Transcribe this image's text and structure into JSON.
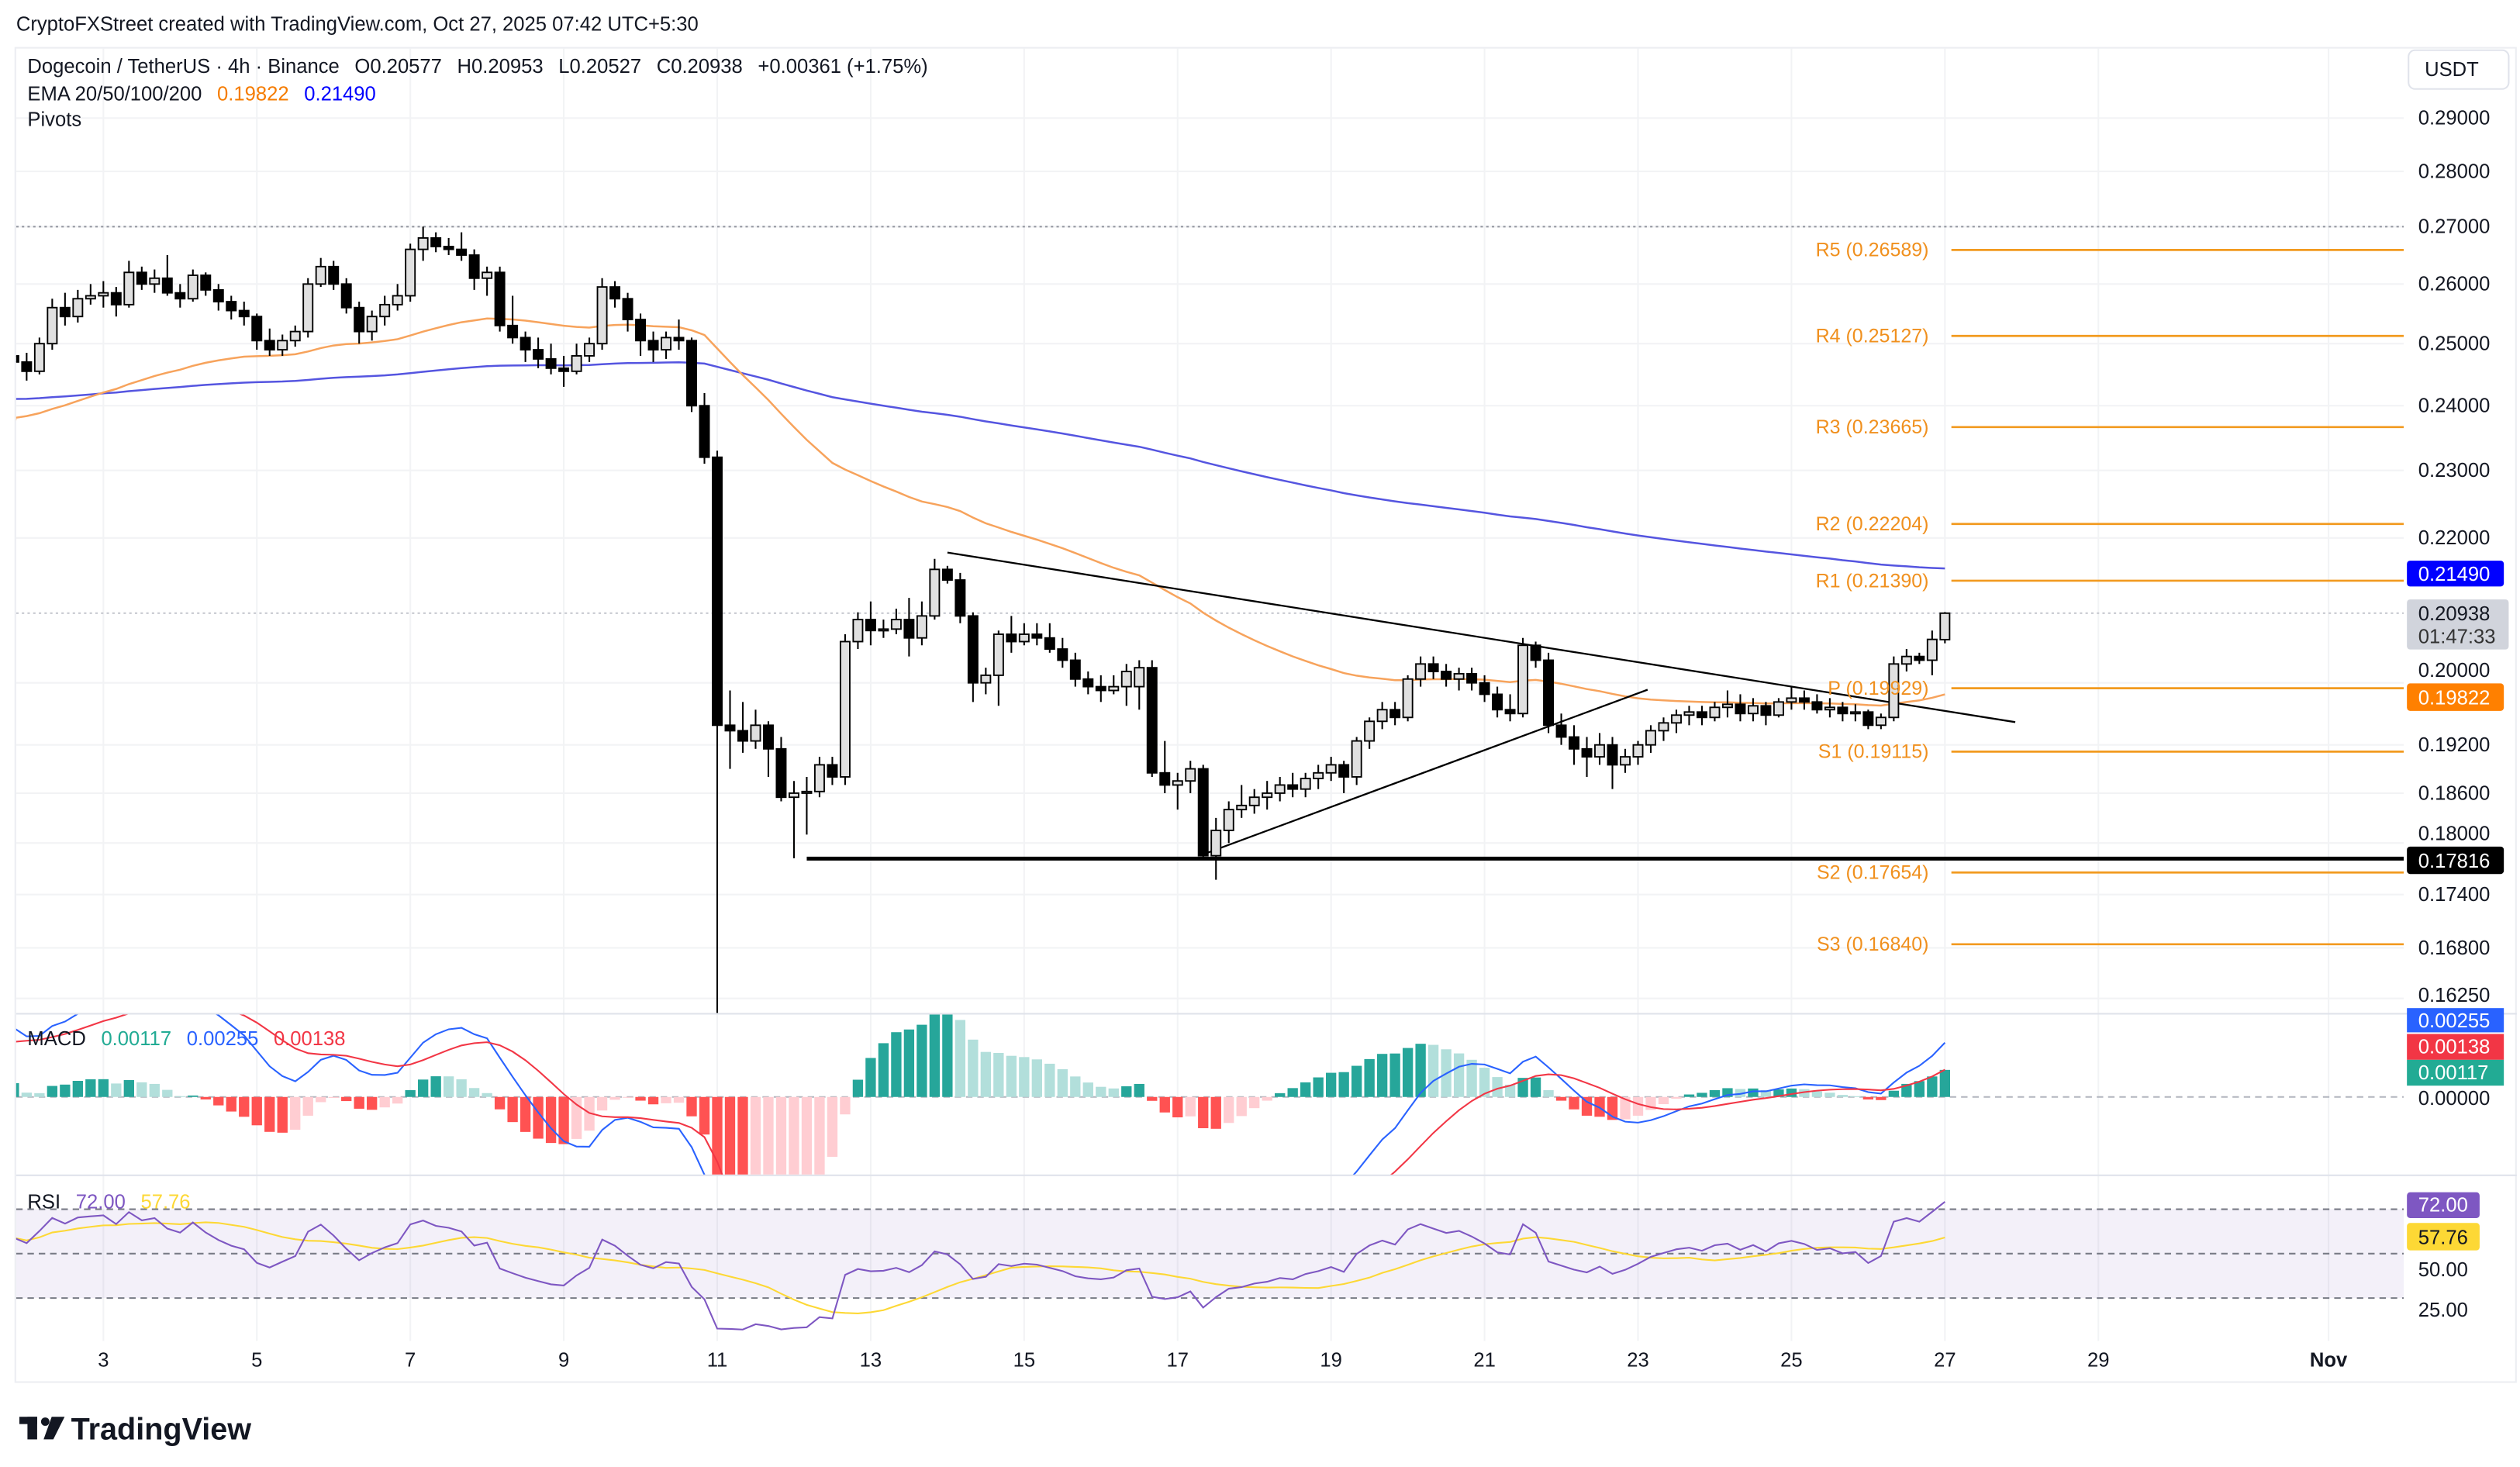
{
  "attribution": "CryptoFXStreet created with TradingView.com, Oct 27, 2025 07:42 UTC+5:30",
  "legend": {
    "symbol": "Dogecoin / TetherUS · 4h · Binance",
    "open": "O0.20577",
    "high": "H0.20953",
    "low": "L0.20527",
    "close": "C0.20938",
    "change": "+0.00361 (+1.75%)",
    "ema_label": "EMA 20/50/100/200",
    "ema_value_1": "0.19822",
    "ema_value_2": "0.21490",
    "pivots_label": "Pivots"
  },
  "currency": "USDT",
  "price_tags": {
    "ema_200": "0.21490",
    "last_price": "0.20938",
    "countdown": "01:47:33",
    "ema_50": "0.19822",
    "support": "0.17816"
  },
  "macd": {
    "label": "MACD",
    "histogram": "0.00117",
    "macd": "0.00255",
    "signal": "0.00138",
    "axis_zero": "0.00000"
  },
  "rsi": {
    "label": "RSI",
    "value": "72.00",
    "ma": "57.76",
    "axis": [
      "50.00",
      "25.00"
    ],
    "upper": 70,
    "middle": 50,
    "lower": 30
  },
  "logo": "TradingView",
  "colors": {
    "up_body": "#e0e0e0",
    "down_body": "#000000",
    "ema_50": "#f7a35c",
    "ema_200": "#5555e0",
    "pivot": "#f29a1f",
    "macd_line": "#2962ff",
    "signal_line": "#f23645",
    "hist_up_strong": "#26a69a",
    "hist_up_weak": "#b2dfdb",
    "hist_down_strong": "#ff5252",
    "hist_down_weak": "#ffcdd2",
    "rsi_line": "#7e57c2",
    "rsi_ma": "#fdd835",
    "tag_blue": "#0000ff",
    "tag_orange": "#ff8000"
  },
  "chart_data": {
    "type": "candlestick",
    "title": "Dogecoin / TetherUS · 4h · Binance",
    "interval": "4h",
    "first_candle": "2025-10-01 20:00",
    "scale": "log",
    "ylim": [
      0.1625,
      0.295
    ],
    "price_ticks": [
      "0.29000",
      "0.28000",
      "0.27000",
      "0.26000",
      "0.25000",
      "0.24000",
      "0.23000",
      "0.22000",
      "0.20000",
      "0.19200",
      "0.18600",
      "0.18000",
      "0.17400",
      "0.16800",
      "0.16250"
    ],
    "x_ticks": [
      {
        "label": "3",
        "date": "2025-10-03"
      },
      {
        "label": "5",
        "date": "2025-10-05"
      },
      {
        "label": "7",
        "date": "2025-10-07"
      },
      {
        "label": "9",
        "date": "2025-10-09"
      },
      {
        "label": "11",
        "date": "2025-10-11"
      },
      {
        "label": "13",
        "date": "2025-10-13"
      },
      {
        "label": "15",
        "date": "2025-10-15"
      },
      {
        "label": "17",
        "date": "2025-10-17"
      },
      {
        "label": "19",
        "date": "2025-10-19"
      },
      {
        "label": "21",
        "date": "2025-10-21"
      },
      {
        "label": "23",
        "date": "2025-10-23"
      },
      {
        "label": "25",
        "date": "2025-10-25"
      },
      {
        "label": "27",
        "date": "2025-10-27"
      },
      {
        "label": "29",
        "date": "2025-10-29"
      },
      {
        "label": "Nov",
        "date": "2025-11-01"
      }
    ],
    "ohlc": [
      [
        0.248,
        0.2495,
        0.2455,
        0.247
      ],
      [
        0.247,
        0.2485,
        0.244,
        0.2455
      ],
      [
        0.2455,
        0.251,
        0.245,
        0.25
      ],
      [
        0.25,
        0.2575,
        0.249,
        0.256
      ],
      [
        0.256,
        0.2585,
        0.253,
        0.2545
      ],
      [
        0.2545,
        0.259,
        0.2535,
        0.2575
      ],
      [
        0.2575,
        0.26,
        0.2565,
        0.258
      ],
      [
        0.258,
        0.2605,
        0.256,
        0.2585
      ],
      [
        0.2585,
        0.2595,
        0.2545,
        0.2565
      ],
      [
        0.2565,
        0.264,
        0.256,
        0.262
      ],
      [
        0.262,
        0.263,
        0.259,
        0.26
      ],
      [
        0.26,
        0.2625,
        0.2585,
        0.261
      ],
      [
        0.261,
        0.265,
        0.258,
        0.2585
      ],
      [
        0.2585,
        0.26,
        0.256,
        0.2575
      ],
      [
        0.2575,
        0.2625,
        0.257,
        0.2615
      ],
      [
        0.2615,
        0.262,
        0.258,
        0.259
      ],
      [
        0.259,
        0.26,
        0.2555,
        0.257
      ],
      [
        0.257,
        0.258,
        0.254,
        0.2555
      ],
      [
        0.2555,
        0.257,
        0.253,
        0.2545
      ],
      [
        0.2545,
        0.255,
        0.249,
        0.2505
      ],
      [
        0.2505,
        0.2525,
        0.248,
        0.249
      ],
      [
        0.249,
        0.2515,
        0.248,
        0.2505
      ],
      [
        0.2505,
        0.253,
        0.2495,
        0.252
      ],
      [
        0.252,
        0.261,
        0.251,
        0.26
      ],
      [
        0.26,
        0.2645,
        0.2595,
        0.263
      ],
      [
        0.263,
        0.264,
        0.259,
        0.26
      ],
      [
        0.26,
        0.261,
        0.255,
        0.256
      ],
      [
        0.256,
        0.257,
        0.25,
        0.252
      ],
      [
        0.252,
        0.2555,
        0.2505,
        0.2545
      ],
      [
        0.2545,
        0.258,
        0.253,
        0.2565
      ],
      [
        0.2565,
        0.26,
        0.2555,
        0.258
      ],
      [
        0.258,
        0.267,
        0.257,
        0.266
      ],
      [
        0.266,
        0.27,
        0.264,
        0.268
      ],
      [
        0.268,
        0.269,
        0.2655,
        0.2665
      ],
      [
        0.2665,
        0.268,
        0.265,
        0.266
      ],
      [
        0.266,
        0.269,
        0.264,
        0.265
      ],
      [
        0.265,
        0.266,
        0.259,
        0.261
      ],
      [
        0.261,
        0.263,
        0.258,
        0.262
      ],
      [
        0.262,
        0.263,
        0.252,
        0.253
      ],
      [
        0.253,
        0.258,
        0.25,
        0.251
      ],
      [
        0.251,
        0.252,
        0.247,
        0.249
      ],
      [
        0.249,
        0.251,
        0.246,
        0.2475
      ],
      [
        0.2475,
        0.25,
        0.245,
        0.246
      ],
      [
        0.246,
        0.248,
        0.243,
        0.2455
      ],
      [
        0.2455,
        0.25,
        0.245,
        0.248
      ],
      [
        0.248,
        0.251,
        0.247,
        0.25
      ],
      [
        0.25,
        0.261,
        0.249,
        0.2595
      ],
      [
        0.2595,
        0.2605,
        0.256,
        0.2575
      ],
      [
        0.2575,
        0.2585,
        0.252,
        0.254
      ],
      [
        0.254,
        0.255,
        0.248,
        0.2505
      ],
      [
        0.2505,
        0.252,
        0.247,
        0.249
      ],
      [
        0.249,
        0.252,
        0.2475,
        0.251
      ],
      [
        0.251,
        0.254,
        0.249,
        0.2505
      ],
      [
        0.2505,
        0.251,
        0.239,
        0.24
      ],
      [
        0.24,
        0.242,
        0.231,
        0.232
      ],
      [
        0.232,
        0.233,
        0.16,
        0.1945
      ],
      [
        0.1945,
        0.199,
        0.189,
        0.1938
      ],
      [
        0.1938,
        0.1975,
        0.191,
        0.1925
      ],
      [
        0.1925,
        0.1965,
        0.1915,
        0.1945
      ],
      [
        0.1945,
        0.195,
        0.188,
        0.1915
      ],
      [
        0.1915,
        0.193,
        0.185,
        0.1855
      ],
      [
        0.1855,
        0.1875,
        0.1782,
        0.186
      ],
      [
        0.186,
        0.188,
        0.181,
        0.1862
      ],
      [
        0.1862,
        0.1905,
        0.1855,
        0.1895
      ],
      [
        0.1895,
        0.1905,
        0.187,
        0.188
      ],
      [
        0.188,
        0.2065,
        0.187,
        0.2055
      ],
      [
        0.2055,
        0.2095,
        0.2045,
        0.2085
      ],
      [
        0.2085,
        0.211,
        0.205,
        0.207
      ],
      [
        0.207,
        0.2085,
        0.206,
        0.2072
      ],
      [
        0.2072,
        0.21,
        0.2065,
        0.2085
      ],
      [
        0.2085,
        0.2115,
        0.2035,
        0.206
      ],
      [
        0.206,
        0.211,
        0.205,
        0.209
      ],
      [
        0.209,
        0.217,
        0.2085,
        0.2155
      ],
      [
        0.2155,
        0.216,
        0.2135,
        0.214
      ],
      [
        0.214,
        0.215,
        0.208,
        0.209
      ],
      [
        0.209,
        0.2095,
        0.1975,
        0.2
      ],
      [
        0.2,
        0.202,
        0.1985,
        0.201
      ],
      [
        0.201,
        0.207,
        0.197,
        0.2065
      ],
      [
        0.2065,
        0.209,
        0.204,
        0.2055
      ],
      [
        0.2055,
        0.208,
        0.205,
        0.2065
      ],
      [
        0.2065,
        0.208,
        0.205,
        0.206
      ],
      [
        0.206,
        0.208,
        0.204,
        0.2045
      ],
      [
        0.2045,
        0.206,
        0.202,
        0.203
      ],
      [
        0.203,
        0.204,
        0.1995,
        0.2005
      ],
      [
        0.2005,
        0.2015,
        0.1985,
        0.1995
      ],
      [
        0.1995,
        0.201,
        0.1975,
        0.199
      ],
      [
        0.199,
        0.201,
        0.1985,
        0.1995
      ],
      [
        0.1995,
        0.2025,
        0.197,
        0.2015
      ],
      [
        0.1995,
        0.203,
        0.1965,
        0.202
      ],
      [
        0.202,
        0.203,
        0.188,
        0.1885
      ],
      [
        0.1885,
        0.1925,
        0.186,
        0.187
      ],
      [
        0.187,
        0.1885,
        0.184,
        0.1875
      ],
      [
        0.1875,
        0.19,
        0.186,
        0.189
      ],
      [
        0.189,
        0.1895,
        0.178,
        0.1785
      ],
      [
        0.1785,
        0.183,
        0.1757,
        0.1815
      ],
      [
        0.1815,
        0.185,
        0.18,
        0.184
      ],
      [
        0.184,
        0.187,
        0.183,
        0.1845
      ],
      [
        0.1845,
        0.1865,
        0.1835,
        0.1855
      ],
      [
        0.1855,
        0.1875,
        0.184,
        0.186
      ],
      [
        0.186,
        0.188,
        0.185,
        0.187
      ],
      [
        0.187,
        0.1885,
        0.1855,
        0.1865
      ],
      [
        0.1865,
        0.1885,
        0.1855,
        0.1878
      ],
      [
        0.1878,
        0.1895,
        0.1865,
        0.1885
      ],
      [
        0.1885,
        0.1905,
        0.1875,
        0.1895
      ],
      [
        0.1895,
        0.19,
        0.186,
        0.188
      ],
      [
        0.188,
        0.193,
        0.187,
        0.1925
      ],
      [
        0.1925,
        0.1955,
        0.1915,
        0.195
      ],
      [
        0.195,
        0.1975,
        0.194,
        0.1965
      ],
      [
        0.1965,
        0.1975,
        0.1945,
        0.1955
      ],
      [
        0.1955,
        0.201,
        0.195,
        0.2005
      ],
      [
        0.2005,
        0.2035,
        0.1995,
        0.2025
      ],
      [
        0.2025,
        0.2035,
        0.2005,
        0.2015
      ],
      [
        0.2015,
        0.2025,
        0.1995,
        0.2005
      ],
      [
        0.2005,
        0.202,
        0.199,
        0.2012
      ],
      [
        0.2012,
        0.202,
        0.199,
        0.2
      ],
      [
        0.2,
        0.201,
        0.1975,
        0.1985
      ],
      [
        0.1985,
        0.1995,
        0.1955,
        0.1965
      ],
      [
        0.1965,
        0.1985,
        0.195,
        0.196
      ],
      [
        0.196,
        0.206,
        0.1955,
        0.205
      ],
      [
        0.205,
        0.2055,
        0.202,
        0.203
      ],
      [
        0.203,
        0.204,
        0.1935,
        0.1945
      ],
      [
        0.1945,
        0.196,
        0.192,
        0.193
      ],
      [
        0.193,
        0.1945,
        0.1895,
        0.1915
      ],
      [
        0.1915,
        0.193,
        0.188,
        0.1905
      ],
      [
        0.1905,
        0.1935,
        0.1895,
        0.192
      ],
      [
        0.192,
        0.193,
        0.1865,
        0.1895
      ],
      [
        0.1895,
        0.1915,
        0.1885,
        0.1905
      ],
      [
        0.1905,
        0.1925,
        0.1895,
        0.192
      ],
      [
        0.192,
        0.1945,
        0.191,
        0.1938
      ],
      [
        0.1938,
        0.1955,
        0.1925,
        0.1948
      ],
      [
        0.1948,
        0.1965,
        0.1935,
        0.1958
      ],
      [
        0.1958,
        0.197,
        0.1945,
        0.1962
      ],
      [
        0.1962,
        0.197,
        0.1945,
        0.1955
      ],
      [
        0.1955,
        0.1975,
        0.195,
        0.1968
      ],
      [
        0.1968,
        0.199,
        0.1955,
        0.1972
      ],
      [
        0.1972,
        0.1985,
        0.195,
        0.196
      ],
      [
        0.196,
        0.198,
        0.195,
        0.197
      ],
      [
        0.197,
        0.1975,
        0.1945,
        0.1958
      ],
      [
        0.1958,
        0.198,
        0.1955,
        0.1975
      ],
      [
        0.1975,
        0.1995,
        0.1965,
        0.198
      ],
      [
        0.198,
        0.199,
        0.1965,
        0.1975
      ],
      [
        0.1975,
        0.1985,
        0.196,
        0.1965
      ],
      [
        0.1965,
        0.198,
        0.1955,
        0.1968
      ],
      [
        0.1968,
        0.1975,
        0.195,
        0.196
      ],
      [
        0.196,
        0.1972,
        0.195,
        0.1962
      ],
      [
        0.1962,
        0.1965,
        0.194,
        0.1945
      ],
      [
        0.1945,
        0.196,
        0.194,
        0.1955
      ],
      [
        0.1955,
        0.2035,
        0.195,
        0.2025
      ],
      [
        0.2025,
        0.2045,
        0.2015,
        0.2035
      ],
      [
        0.2035,
        0.204,
        0.2025,
        0.203
      ],
      [
        0.203,
        0.207,
        0.201,
        0.2058
      ],
      [
        0.20577,
        0.20953,
        0.20527,
        0.20938
      ]
    ],
    "pivots": [
      {
        "name": "R5",
        "value": 0.26589,
        "label": "R5 (0.26589)"
      },
      {
        "name": "R4",
        "value": 0.25127,
        "label": "R4 (0.25127)"
      },
      {
        "name": "R3",
        "value": 0.23665,
        "label": "R3 (0.23665)"
      },
      {
        "name": "R2",
        "value": 0.22204,
        "label": "R2 (0.22204)"
      },
      {
        "name": "R1",
        "value": 0.2139,
        "label": "R1 (0.21390)"
      },
      {
        "name": "P",
        "value": 0.19929,
        "label": "P (0.19929)"
      },
      {
        "name": "S1",
        "value": 0.19115,
        "label": "S1 (0.19115)"
      },
      {
        "name": "S2",
        "value": 0.17654,
        "label": "S2 (0.17654)"
      },
      {
        "name": "S3",
        "value": 0.1684,
        "label": "S3 (0.16840)"
      }
    ],
    "support_line": {
      "price": 0.17816,
      "from": "2025-10-12 04:00"
    },
    "trendlines": [
      {
        "name": "descending",
        "from": {
          "date": "2025-10-14 00:00",
          "price": 0.2179
        },
        "to": {
          "date": "2025-10-27 22:00",
          "price": 0.1949
        }
      },
      {
        "name": "ascending",
        "from": {
          "date": "2025-10-17 09:00",
          "price": 0.1788
        },
        "to": {
          "date": "2025-10-23 03:00",
          "price": 0.1991
        }
      }
    ],
    "high_line": 0.27
  }
}
